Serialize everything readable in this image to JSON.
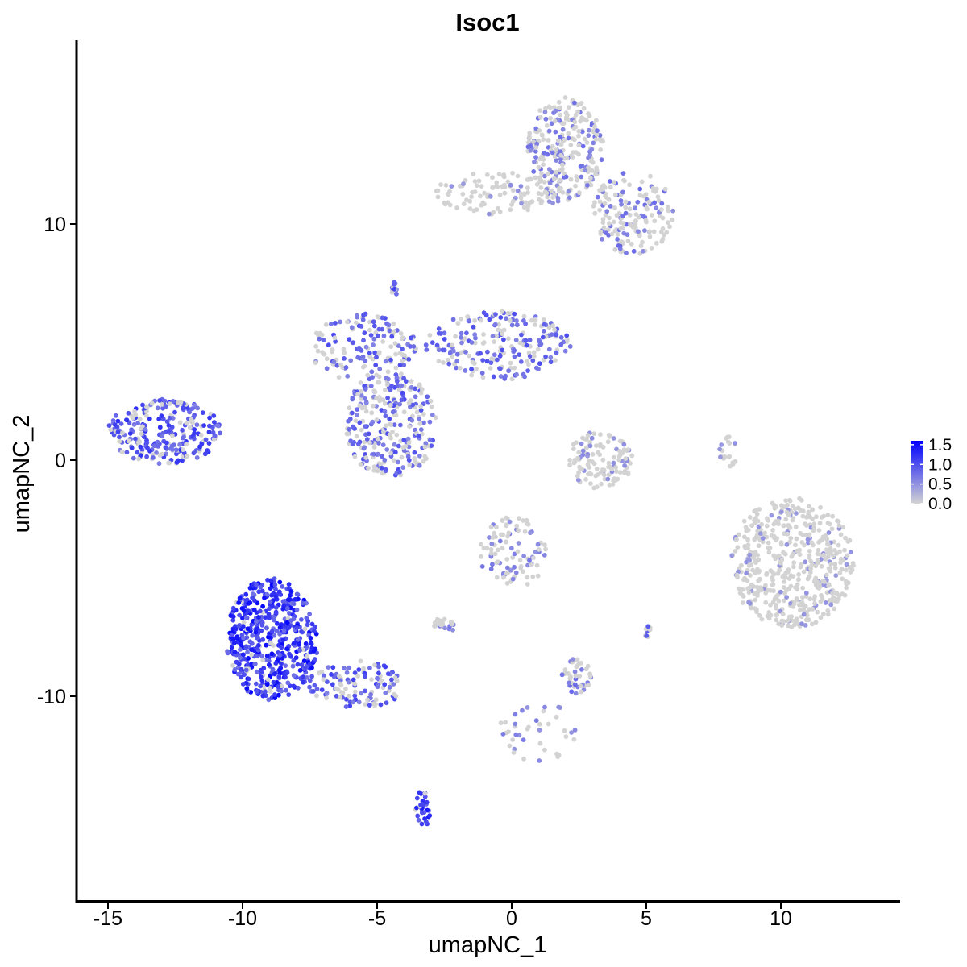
{
  "chart_data": {
    "type": "scatter",
    "title": "Isoc1",
    "xlabel": "umapNC_1",
    "ylabel": "umapNC_2",
    "xlim": [
      -16.5,
      14.2
    ],
    "ylim": [
      -18.5,
      17.6
    ],
    "x_ticks": [
      -15,
      -10,
      -5,
      0,
      5,
      10
    ],
    "y_ticks": [
      -10,
      0,
      10
    ],
    "x_tick_labels": [
      "-15",
      "-10",
      "-5",
      "0",
      "5",
      "10"
    ],
    "y_tick_labels": [
      "-10",
      "0",
      "10"
    ],
    "grid": false,
    "legend": {
      "position": "right",
      "type": "colorbar",
      "min": 0.0,
      "max": 1.6,
      "ticks": [
        0.0,
        0.5,
        1.0,
        1.5
      ],
      "tick_labels": [
        "0.0",
        "0.5",
        "1.0",
        "1.5"
      ],
      "low_color": "#d3d3d3",
      "high_color": "#0000ff"
    },
    "point_colors": {
      "low": "#d3d3d3",
      "high": "#0000ff"
    },
    "clusters": [
      {
        "x": [
          -2.9,
          2.1
        ],
        "y": [
          10.4,
          12.2
        ],
        "n": 120,
        "expr": 0.15
      },
      {
        "x": [
          0.6,
          3.4
        ],
        "y": [
          11.0,
          15.4
        ],
        "n": 260,
        "expr": 0.35
      },
      {
        "x": [
          3.0,
          6.0
        ],
        "y": [
          8.7,
          12.2
        ],
        "n": 170,
        "expr": 0.4
      },
      {
        "x": [
          -7.5,
          -3.5
        ],
        "y": [
          3.2,
          6.2
        ],
        "n": 150,
        "expr": 0.6
      },
      {
        "x": [
          -3.2,
          2.2
        ],
        "y": [
          3.4,
          6.3
        ],
        "n": 220,
        "expr": 0.6
      },
      {
        "x": [
          -6.2,
          -2.8
        ],
        "y": [
          -0.8,
          3.8
        ],
        "n": 280,
        "expr": 0.6
      },
      {
        "x": [
          -4.5,
          -4.2
        ],
        "y": [
          7.0,
          7.6
        ],
        "n": 15,
        "expr": 0.7
      },
      {
        "x": [
          -15.0,
          -10.8
        ],
        "y": [
          -0.2,
          2.6
        ],
        "n": 260,
        "expr": 0.8
      },
      {
        "x": [
          2.0,
          4.5
        ],
        "y": [
          -1.2,
          1.2
        ],
        "n": 120,
        "expr": 0.15
      },
      {
        "x": [
          7.7,
          8.4
        ],
        "y": [
          -0.3,
          1.1
        ],
        "n": 20,
        "expr": 0.1
      },
      {
        "x": [
          8.1,
          12.7
        ],
        "y": [
          -7.1,
          -1.6
        ],
        "n": 520,
        "expr": 0.1
      },
      {
        "x": [
          -1.2,
          1.3
        ],
        "y": [
          -5.4,
          -2.4
        ],
        "n": 100,
        "expr": 0.3
      },
      {
        "x": [
          -10.6,
          -7.2
        ],
        "y": [
          -10.2,
          -5.0
        ],
        "n": 520,
        "expr": 1.1
      },
      {
        "x": [
          -7.6,
          -3.9
        ],
        "y": [
          -10.5,
          -8.5
        ],
        "n": 120,
        "expr": 0.7
      },
      {
        "x": [
          -2.9,
          -2.0
        ],
        "y": [
          -7.3,
          -6.6
        ],
        "n": 25,
        "expr": 0.3
      },
      {
        "x": [
          1.8,
          3.0
        ],
        "y": [
          -9.9,
          -8.4
        ],
        "n": 45,
        "expr": 0.4
      },
      {
        "x": [
          -3.6,
          -3.0
        ],
        "y": [
          -15.6,
          -13.9
        ],
        "n": 30,
        "expr": 1.0
      },
      {
        "x": [
          -0.5,
          2.6
        ],
        "y": [
          -12.8,
          -10.3
        ],
        "n": 40,
        "expr": 0.25
      },
      {
        "x": [
          4.9,
          5.2
        ],
        "y": [
          -7.5,
          -7.0
        ],
        "n": 8,
        "expr": 0.7
      }
    ]
  }
}
